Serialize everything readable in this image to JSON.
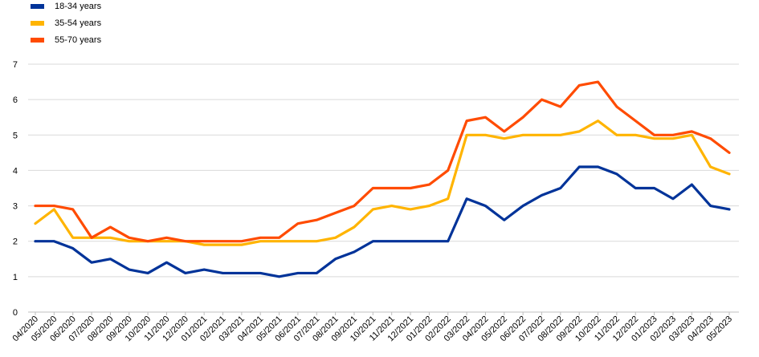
{
  "chart_data": {
    "type": "line",
    "title": "",
    "xlabel": "",
    "ylabel": "",
    "ylim": [
      0,
      7
    ],
    "yticks": [
      0,
      1,
      2,
      3,
      4,
      5,
      6,
      7
    ],
    "grid": "horizontal",
    "legend_position": "top-left",
    "categories": [
      "04/2020",
      "05/2020",
      "06/2020",
      "07/2020",
      "08/2020",
      "09/2020",
      "10/2020",
      "11/2020",
      "12/2020",
      "01/2021",
      "02/2021",
      "03/2021",
      "04/2021",
      "05/2021",
      "06/2021",
      "07/2021",
      "08/2021",
      "09/2021",
      "10/2021",
      "11/2021",
      "12/2021",
      "01/2022",
      "02/2022",
      "03/2022",
      "04/2022",
      "05/2022",
      "06/2022",
      "07/2022",
      "08/2022",
      "09/2022",
      "10/2022",
      "11/2022",
      "12/2022",
      "01/2023",
      "02/2023",
      "03/2023",
      "04/2023",
      "05/2023"
    ],
    "series": [
      {
        "name": "18-34 years",
        "color": "#003399",
        "values": [
          2.0,
          2.0,
          1.8,
          1.4,
          1.5,
          1.2,
          1.1,
          1.4,
          1.1,
          1.2,
          1.1,
          1.1,
          1.1,
          1.0,
          1.1,
          1.1,
          1.5,
          1.7,
          2.0,
          2.0,
          2.0,
          2.0,
          2.0,
          3.2,
          3.0,
          2.6,
          3.0,
          3.3,
          3.5,
          4.1,
          4.1,
          3.9,
          3.5,
          3.5,
          3.2,
          3.6,
          3.0,
          2.9
        ]
      },
      {
        "name": "35-54 years",
        "color": "#FFB400",
        "values": [
          2.5,
          2.9,
          2.1,
          2.1,
          2.1,
          2.0,
          2.0,
          2.0,
          2.0,
          1.9,
          1.9,
          1.9,
          2.0,
          2.0,
          2.0,
          2.0,
          2.1,
          2.4,
          2.9,
          3.0,
          2.9,
          3.0,
          3.2,
          5.0,
          5.0,
          4.9,
          5.0,
          5.0,
          5.0,
          5.1,
          5.4,
          5.0,
          5.0,
          4.9,
          4.9,
          5.0,
          4.1,
          3.9
        ]
      },
      {
        "name": "55-70 years",
        "color": "#FF4B00",
        "values": [
          3.0,
          3.0,
          2.9,
          2.1,
          2.4,
          2.1,
          2.0,
          2.1,
          2.0,
          2.0,
          2.0,
          2.0,
          2.1,
          2.1,
          2.5,
          2.6,
          2.8,
          3.0,
          3.5,
          3.5,
          3.5,
          3.6,
          4.0,
          5.4,
          5.5,
          5.1,
          5.5,
          6.0,
          5.8,
          6.4,
          6.5,
          5.8,
          5.4,
          5.0,
          5.0,
          5.1,
          4.9,
          4.5
        ]
      }
    ]
  }
}
